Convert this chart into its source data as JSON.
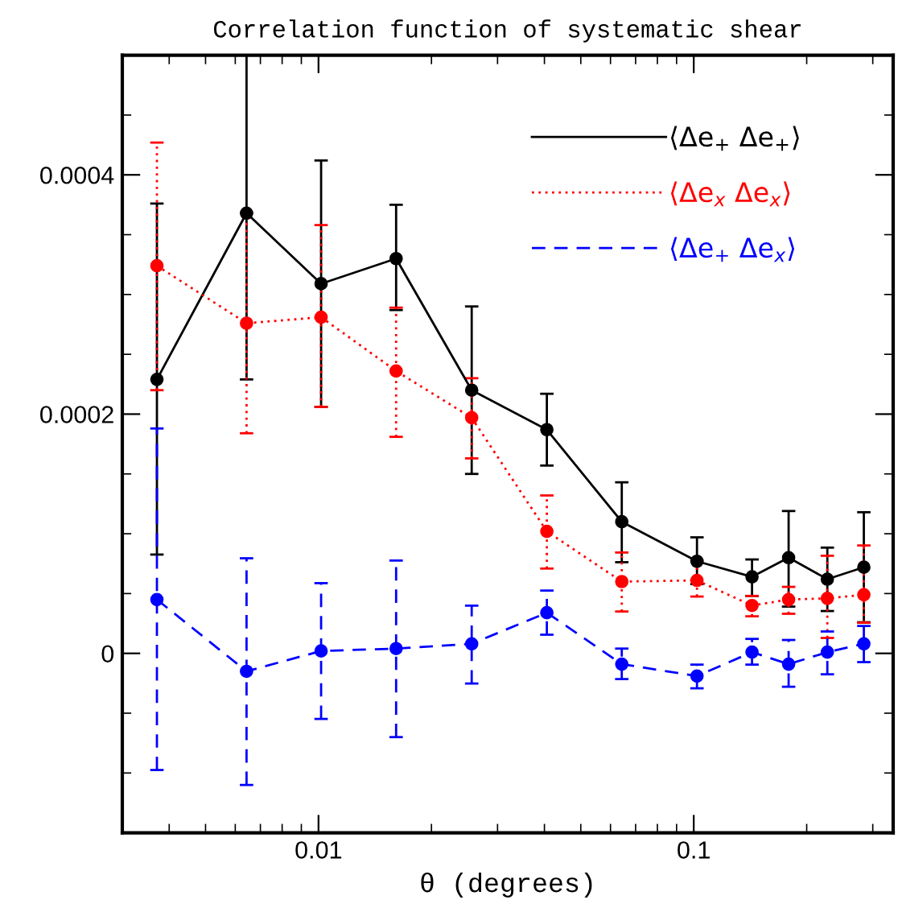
{
  "chart_data": {
    "type": "line",
    "title": "Correlation function of systematic shear",
    "xlabel": "θ (degrees)",
    "log": "x",
    "x": [
      0.00371,
      0.00643,
      0.01016,
      0.0161,
      0.0256,
      0.0406,
      0.0643,
      0.102,
      0.143,
      0.179,
      0.227,
      0.284
    ],
    "xlim": [
      0.003,
      0.34
    ],
    "xticks": [
      {
        "value": 0.003,
        "label": null
      },
      {
        "value": 0.004,
        "label": null
      },
      {
        "value": 0.005,
        "label": null
      },
      {
        "value": 0.006,
        "label": null
      },
      {
        "value": 0.007,
        "label": null
      },
      {
        "value": 0.008,
        "label": null
      },
      {
        "value": 0.009,
        "label": null
      },
      0.01,
      {
        "value": 0.02,
        "label": null
      },
      {
        "value": 0.03,
        "label": null
      },
      {
        "value": 0.04,
        "label": null
      },
      {
        "value": 0.05,
        "label": null
      },
      {
        "value": 0.06,
        "label": null
      },
      {
        "value": 0.07,
        "label": null
      },
      {
        "value": 0.08,
        "label": null
      },
      {
        "value": 0.09,
        "label": null
      },
      0.1,
      {
        "value": 0.2,
        "label": null
      },
      {
        "value": 0.3,
        "label": null
      }
    ],
    "ylim": [
      -0.00015,
      0.0005
    ],
    "yticks": [
      {
        "value": -0.0001,
        "label": null
      },
      {
        "value": -5e-05,
        "label": null
      },
      0,
      {
        "value": 5e-05,
        "label": null
      },
      {
        "value": 0.0001,
        "label": null
      },
      {
        "value": 0.00015,
        "label": null
      },
      0.0002,
      {
        "value": 0.00025,
        "label": null
      },
      {
        "value": 0.0003,
        "label": null
      },
      {
        "value": 0.00035,
        "label": null
      },
      0.0004,
      {
        "value": 0.00045,
        "label": null
      }
    ],
    "grid": false,
    "legend": "top right",
    "marker": "circle",
    "series": [
      {
        "name": "⟨Δe$_{+}$ Δe$_{+}$⟩",
        "color": "#000000",
        "line_style": "solid",
        "values": [
          0.000229,
          0.000368,
          0.000309,
          0.00033,
          0.00022,
          0.000187,
          0.00011,
          7.7e-05,
          6.4e-05,
          8e-05,
          6.2e-05,
          7.2e-05
        ],
        "errors": [
          [
            8.26e-05,
            0.000376
          ],
          [
            0.000229,
            0.0005
          ],
          [
            0.000206,
            0.000412
          ],
          [
            0.000287,
            0.000375
          ],
          [
            0.00015,
            0.00029
          ],
          [
            0.000157,
            0.000217
          ],
          [
            7.62e-05,
            0.000143
          ],
          [
            5.79e-05,
            9.7e-05
          ],
          [
            4.8e-05,
            7.85e-05
          ],
          [
            3.91e-05,
            0.000119
          ],
          [
            3.54e-05,
            8.84e-05
          ],
          [
            2.6e-05,
            0.000118
          ]
        ]
      },
      {
        "name": "⟨Δe$_{x}$ Δe$_{x}$⟩",
        "color": "#ff0000",
        "line_style": "dotted",
        "values": [
          0.000324,
          0.000276,
          0.000281,
          0.000236,
          0.000197,
          0.000102,
          6e-05,
          6.1e-05,
          4e-05,
          4.5e-05,
          4.6e-05,
          4.9e-05
        ],
        "errors": [
          [
            0.00022,
            0.000427
          ],
          [
            0.000184,
            0.000368
          ],
          [
            0.000206,
            0.000358
          ],
          [
            0.000181,
            0.000289
          ],
          [
            0.000163,
            0.00023
          ],
          [
            7.09e-05,
            0.000132
          ],
          [
            3.5e-05,
            8.43e-05
          ],
          [
            4.75e-05,
            7.76e-05
          ],
          [
            3.1e-05,
            4.8e-05
          ],
          [
            3.31e-05,
            5.56e-05
          ],
          [
            1.29e-05,
            8.16e-05
          ],
          [
            2.56e-05,
            9.02e-05
          ]
        ]
      },
      {
        "name": "⟨Δe$_{+}$ Δe$_{x}$⟩",
        "color": "#0000ff",
        "line_style": "dashed",
        "values": [
          4.5e-05,
          -1.5e-05,
          2e-06,
          4e-06,
          8e-06,
          3.4e-05,
          -9e-06,
          -1.9e-05,
          1e-06,
          -9e-06,
          1e-06,
          8e-06
        ],
        "errors": [
          [
            -9.75e-05,
            0.000188
          ],
          [
            -0.00011,
            7.95e-05
          ],
          [
            -5.48e-05,
            5.87e-05
          ],
          [
            -7e-05,
            7.76e-05
          ],
          [
            -2.52e-05,
            3.99e-05
          ],
          [
            1.56e-05,
            5.25e-05
          ],
          [
            -2.15e-05,
            4e-06
          ],
          [
            -2.92e-05,
            -9.4e-06
          ],
          [
            -9.4e-06,
            1.21e-05
          ],
          [
            -2.79e-05,
            1.12e-05
          ],
          [
            -1.75e-05,
            1.83e-05
          ],
          [
            -7.3e-06,
            2.29e-05
          ]
        ]
      }
    ]
  }
}
